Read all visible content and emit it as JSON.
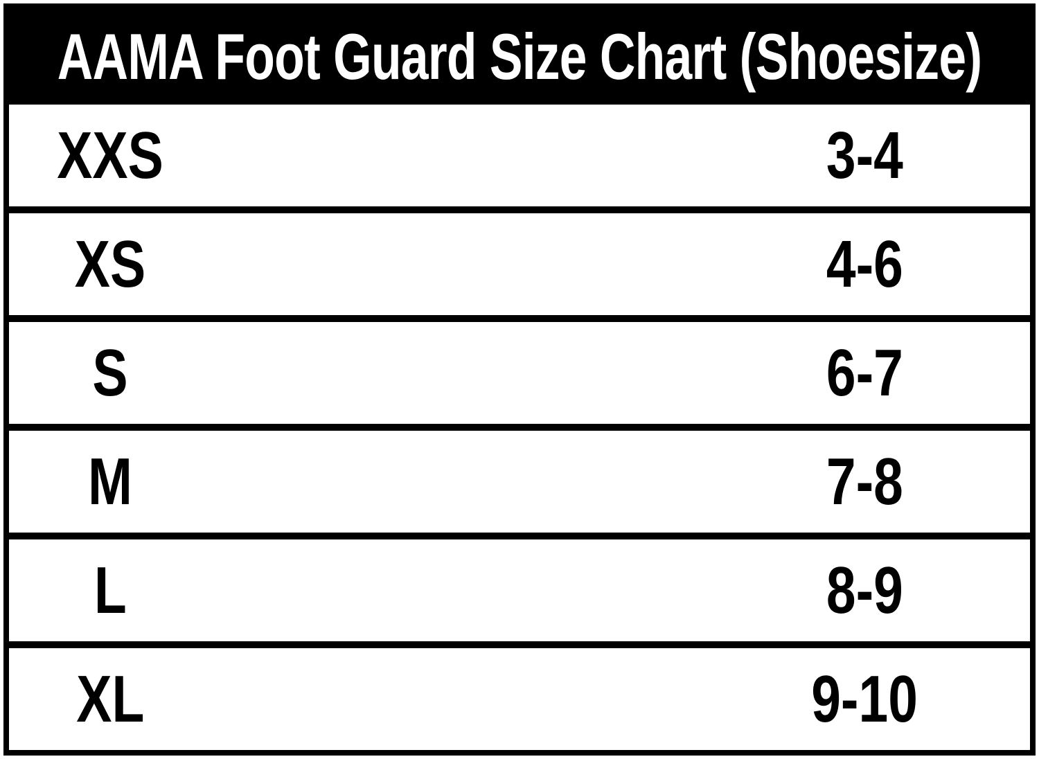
{
  "header": {
    "title": "AAMA Foot Guard Size Chart (Shoesize)"
  },
  "chart_data": {
    "type": "table",
    "title": "AAMA Foot Guard Size Chart (Shoesize)",
    "rows": [
      {
        "size": "XXS",
        "shoesize": "3-4"
      },
      {
        "size": "XS",
        "shoesize": "4-6"
      },
      {
        "size": "S",
        "shoesize": "6-7"
      },
      {
        "size": "M",
        "shoesize": "7-8"
      },
      {
        "size": "L",
        "shoesize": "8-9"
      },
      {
        "size": "XL",
        "shoesize": "9-10"
      }
    ],
    "layout": {
      "title_position": "top-banner",
      "grid": "horizontal-rules-only",
      "size_column_alignment": "center-left-region",
      "shoesize_column_alignment": "center-right-region"
    }
  },
  "colors": {
    "header_bg": "#000000",
    "header_text": "#ffffff",
    "row_bg": "#ffffff",
    "row_text": "#000000",
    "border": "#000000"
  }
}
